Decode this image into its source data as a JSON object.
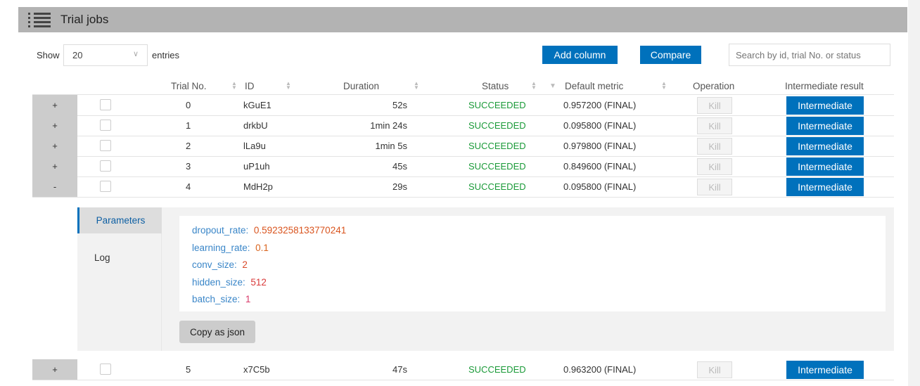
{
  "header": {
    "title": "Trial jobs",
    "icon": "list-icon"
  },
  "toolbar": {
    "show_label": "Show",
    "entries_value": "20",
    "entries_label": "entries",
    "add_column": "Add column",
    "compare": "Compare",
    "search_placeholder": "Search by id, trial No. or status"
  },
  "columns": [
    "Trial No.",
    "ID",
    "Duration",
    "Status",
    "Default metric",
    "Operation",
    "Intermediate result"
  ],
  "rows": [
    {
      "expand": "+",
      "no": "0",
      "id": "kGuE1",
      "duration": "52s",
      "status": "SUCCEEDED",
      "metric": "0.957200 (FINAL)",
      "kill": "Kill",
      "intermediate": "Intermediate"
    },
    {
      "expand": "+",
      "no": "1",
      "id": "drkbU",
      "duration": "1min 24s",
      "status": "SUCCEEDED",
      "metric": "0.095800 (FINAL)",
      "kill": "Kill",
      "intermediate": "Intermediate"
    },
    {
      "expand": "+",
      "no": "2",
      "id": "lLa9u",
      "duration": "1min 5s",
      "status": "SUCCEEDED",
      "metric": "0.979800 (FINAL)",
      "kill": "Kill",
      "intermediate": "Intermediate"
    },
    {
      "expand": "+",
      "no": "3",
      "id": "uP1uh",
      "duration": "45s",
      "status": "SUCCEEDED",
      "metric": "0.849600 (FINAL)",
      "kill": "Kill",
      "intermediate": "Intermediate"
    },
    {
      "expand": "-",
      "no": "4",
      "id": "MdH2p",
      "duration": "29s",
      "status": "SUCCEEDED",
      "metric": "0.095800 (FINAL)",
      "kill": "Kill",
      "intermediate": "Intermediate"
    },
    {
      "expand": "+",
      "no": "5",
      "id": "x7C5b",
      "duration": "47s",
      "status": "SUCCEEDED",
      "metric": "0.963200 (FINAL)",
      "kill": "Kill",
      "intermediate": "Intermediate"
    }
  ],
  "detail": {
    "tabs": [
      "Parameters",
      "Log"
    ],
    "active_tab": "Parameters",
    "copy_button": "Copy as json",
    "params": [
      {
        "key": "dropout_rate:",
        "value": "0.5923258133770241",
        "color": "#d9541e"
      },
      {
        "key": "learning_rate:",
        "value": "0.1",
        "color": "#d9641e"
      },
      {
        "key": "conv_size:",
        "value": "2",
        "color": "#d94a2a"
      },
      {
        "key": "hidden_size:",
        "value": "512",
        "color": "#d93a3a"
      },
      {
        "key": "batch_size:",
        "value": "1",
        "color": "#d93a6a"
      }
    ]
  },
  "colors": {
    "accent": "#0071bc",
    "success": "#1a9a38"
  }
}
